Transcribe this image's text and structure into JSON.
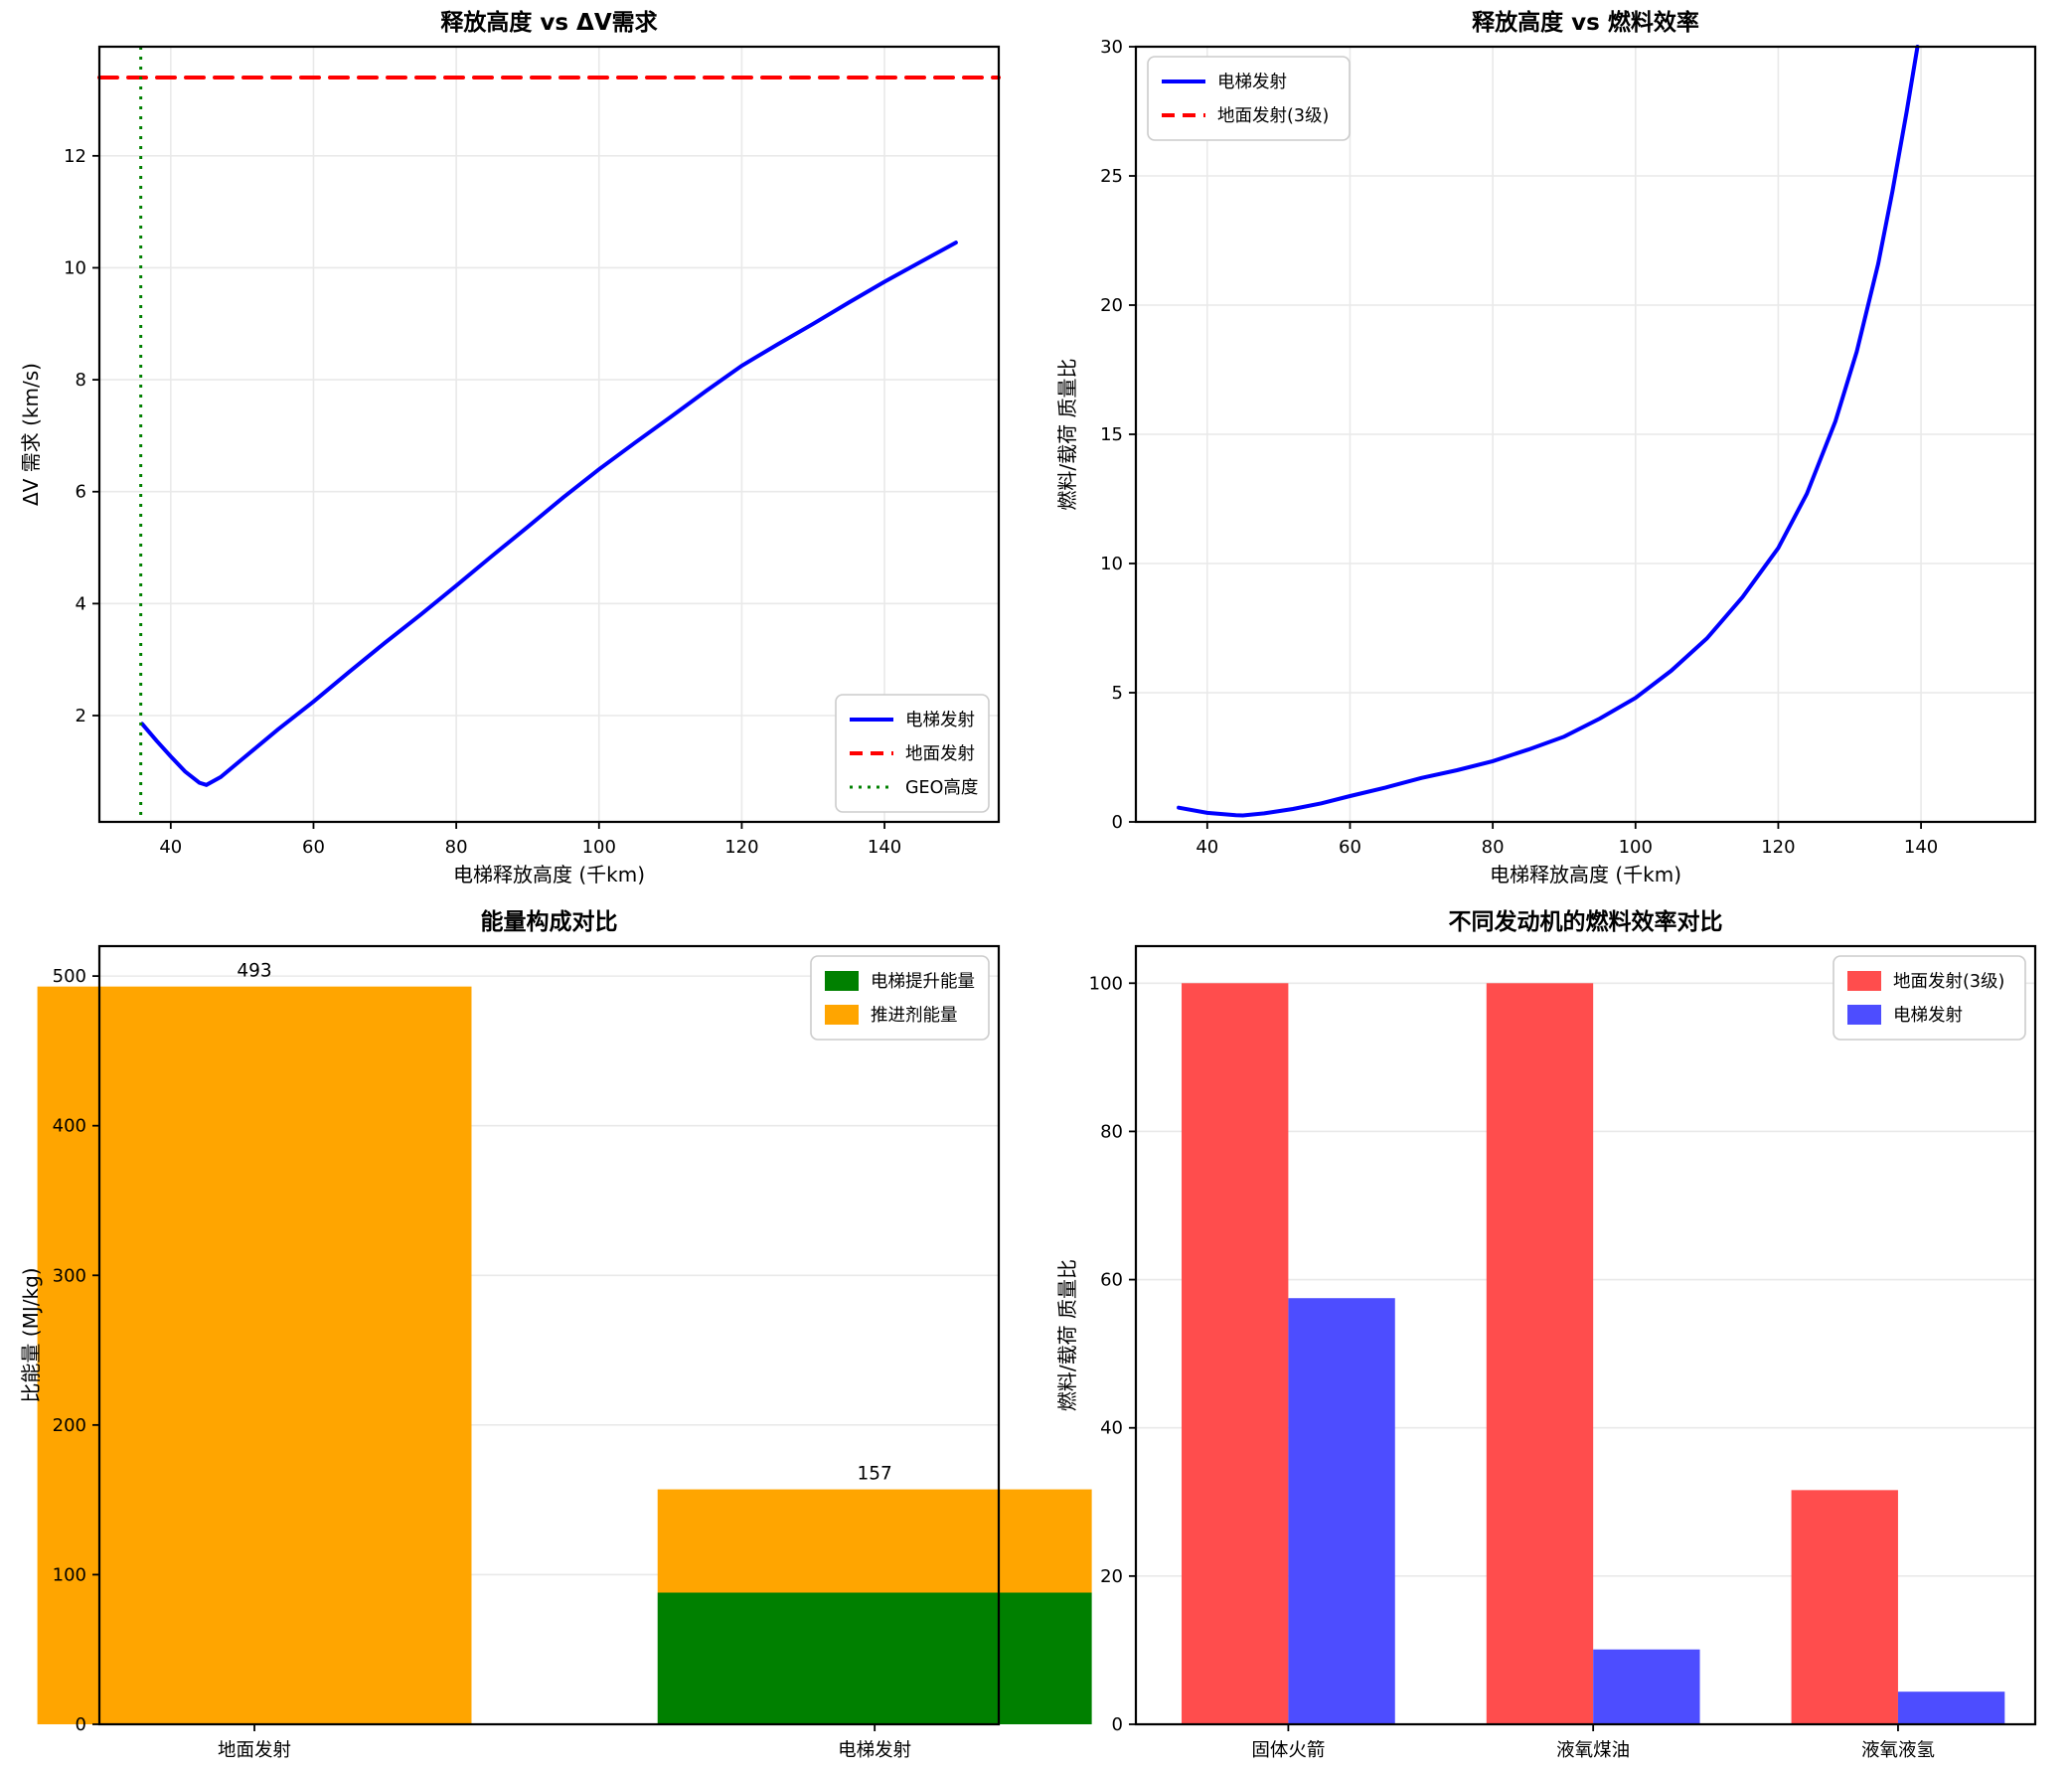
{
  "figure": {
    "background": "#ffffff",
    "grid_color": "#e9e9e9",
    "spine_color": "#000000"
  },
  "chart_data": [
    {
      "id": "dv_demand",
      "type": "line",
      "title": "释放高度 vs ΔV需求",
      "xlabel": "电梯释放高度 (千km)",
      "ylabel": "ΔV 需求 (km/s)",
      "xlim": [
        30,
        156
      ],
      "ylim": [
        0.1,
        13.95
      ],
      "xticks": [
        40,
        60,
        80,
        100,
        120,
        140
      ],
      "yticks": [
        2,
        4,
        6,
        8,
        10,
        12
      ],
      "grid": "both",
      "legend_position": "lower-right",
      "series": [
        {
          "id": "elevator-launch",
          "name": "电梯发射",
          "color": "#0000ff",
          "style": "solid",
          "width": 4,
          "points": [
            [
              36,
              1.85
            ],
            [
              38,
              1.55
            ],
            [
              40,
              1.27
            ],
            [
              42,
              1.0
            ],
            [
              44,
              0.8
            ],
            [
              45,
              0.76
            ],
            [
              47,
              0.9
            ],
            [
              50,
              1.22
            ],
            [
              55,
              1.75
            ],
            [
              60,
              2.25
            ],
            [
              65,
              2.78
            ],
            [
              70,
              3.3
            ],
            [
              75,
              3.8
            ],
            [
              80,
              4.32
            ],
            [
              85,
              4.85
            ],
            [
              90,
              5.37
            ],
            [
              95,
              5.9
            ],
            [
              100,
              6.4
            ],
            [
              105,
              6.87
            ],
            [
              110,
              7.33
            ],
            [
              115,
              7.8
            ],
            [
              120,
              8.25
            ],
            [
              125,
              8.63
            ],
            [
              130,
              9.0
            ],
            [
              135,
              9.38
            ],
            [
              140,
              9.75
            ],
            [
              145,
              10.1
            ],
            [
              150,
              10.45
            ]
          ]
        },
        {
          "id": "ground-launch",
          "name": "地面发射",
          "color": "#ff0000",
          "style": "dashed",
          "width": 4,
          "hline_y": 13.4
        },
        {
          "id": "geo-altitude",
          "name": "GEO高度",
          "color": "#008000",
          "style": "dotted",
          "width": 3,
          "vline_x": 35.8
        }
      ]
    },
    {
      "id": "fuel_efficiency",
      "type": "line",
      "title": "释放高度 vs 燃料效率",
      "xlabel": "电梯释放高度 (千km)",
      "ylabel": "燃料/载荷 质量比",
      "xlim": [
        30,
        156
      ],
      "ylim": [
        0,
        30
      ],
      "xticks": [
        40,
        60,
        80,
        100,
        120,
        140
      ],
      "yticks": [
        0,
        5,
        10,
        15,
        20,
        25,
        30
      ],
      "grid": "both",
      "legend_position": "upper-left",
      "series": [
        {
          "id": "elevator-launch",
          "name": "电梯发射",
          "color": "#0000ff",
          "style": "solid",
          "width": 4,
          "points": [
            [
              36,
              0.55
            ],
            [
              40,
              0.35
            ],
            [
              44,
              0.26
            ],
            [
              45,
              0.25
            ],
            [
              48,
              0.33
            ],
            [
              52,
              0.5
            ],
            [
              56,
              0.72
            ],
            [
              60,
              1.0
            ],
            [
              65,
              1.33
            ],
            [
              70,
              1.7
            ],
            [
              75,
              2.0
            ],
            [
              80,
              2.35
            ],
            [
              85,
              2.8
            ],
            [
              90,
              3.3
            ],
            [
              95,
              4.0
            ],
            [
              100,
              4.8
            ],
            [
              105,
              5.85
            ],
            [
              110,
              7.1
            ],
            [
              115,
              8.7
            ],
            [
              120,
              10.6
            ],
            [
              124,
              12.7
            ],
            [
              128,
              15.5
            ],
            [
              131,
              18.2
            ],
            [
              134,
              21.6
            ],
            [
              136,
              24.4
            ],
            [
              138,
              27.5
            ],
            [
              139.5,
              30
            ]
          ]
        },
        {
          "id": "ground-launch-3stage",
          "name": "地面发射(3级)",
          "color": "#ff0000",
          "style": "dashed",
          "width": 4,
          "legend_only": true
        }
      ]
    },
    {
      "id": "energy_composition",
      "type": "bar-stacked",
      "title": "能量构成对比",
      "xlabel": "",
      "ylabel": "比能量 (MJ/kg)",
      "categories": [
        "地面发射",
        "电梯发射"
      ],
      "series": [
        {
          "id": "elevator-lift-energy",
          "name": "电梯提升能量",
          "color": "#008000",
          "values": [
            0,
            88
          ]
        },
        {
          "id": "propellant-energy",
          "name": "推进剂能量",
          "color": "#ffa500",
          "values": [
            493,
            69
          ]
        }
      ],
      "total_labels": [
        "493",
        "157"
      ],
      "xlim": [
        -0.25,
        1.2
      ],
      "ylim": [
        0,
        520
      ],
      "yticks": [
        0,
        100,
        200,
        300,
        400,
        500
      ],
      "bar_width": 0.35,
      "grid": "y",
      "legend_position": "upper-right"
    },
    {
      "id": "engine_comparison",
      "type": "bar-grouped",
      "title": "不同发动机的燃料效率对比",
      "xlabel": "",
      "ylabel": "燃料/载荷 质量比",
      "categories": [
        "固体火箭",
        "液氧煤油",
        "液氧液氢"
      ],
      "series": [
        {
          "id": "ground-launch-3stage",
          "name": "地面发射(3级)",
          "color": "#ff4d4d",
          "values": [
            100,
            100,
            31.6
          ]
        },
        {
          "id": "elevator-launch",
          "name": "电梯发射",
          "color": "#4d4dff",
          "values": [
            57.5,
            10.1,
            4.4
          ]
        }
      ],
      "xlim": [
        -0.5,
        2.45
      ],
      "ylim": [
        0,
        105
      ],
      "yticks": [
        0,
        20,
        40,
        60,
        80,
        100
      ],
      "bar_width": 0.35,
      "grid": "y",
      "legend_position": "upper-right"
    }
  ]
}
